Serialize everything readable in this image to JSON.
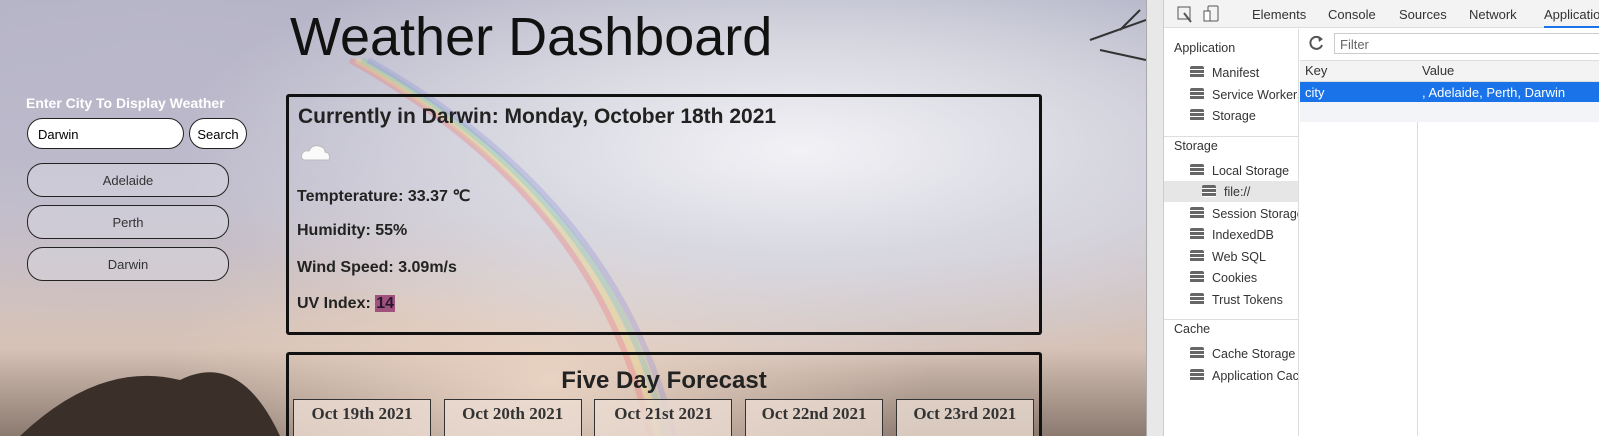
{
  "page": {
    "title": "Weather Dashboard",
    "search": {
      "label": "Enter City To Display Weather",
      "input": "Darwin",
      "button": "Search"
    },
    "history": [
      "Adelaide",
      "Perth",
      "Darwin"
    ],
    "current": {
      "heading": "Currently in Darwin: Monday, October 18th 2021",
      "temperature": "Tempterature: 33.37 ℃",
      "humidity": "Humidity: 55%",
      "wind": "Wind Speed: 3.09m/s",
      "uv_label": "UV Index:",
      "uv_value": "14"
    },
    "forecast": {
      "title": "Five Day Forecast",
      "dates": [
        "Oct 19th 2021",
        "Oct 20th 2021",
        "Oct 21st 2021",
        "Oct 22nd 2021",
        "Oct 23rd 2021"
      ]
    }
  },
  "devtools": {
    "tabs": [
      "Elements",
      "Console",
      "Sources",
      "Network",
      "Application"
    ],
    "sidebar": [
      {
        "header": "Application",
        "items": [
          "Manifest",
          "Service Workers",
          "Storage"
        ]
      },
      {
        "header": "Storage",
        "items": [
          "Local Storage",
          "file://",
          "Session Storage",
          "IndexedDB",
          "Web SQL",
          "Cookies",
          "Trust Tokens"
        ]
      },
      {
        "header": "Cache",
        "items": [
          "Cache Storage",
          "Application Cache"
        ]
      }
    ],
    "filter": "Filter",
    "table": {
      "columns": [
        "Key",
        "Value"
      ],
      "rows": [
        [
          "city",
          ", Adelaide, Perth, Darwin"
        ]
      ]
    }
  }
}
